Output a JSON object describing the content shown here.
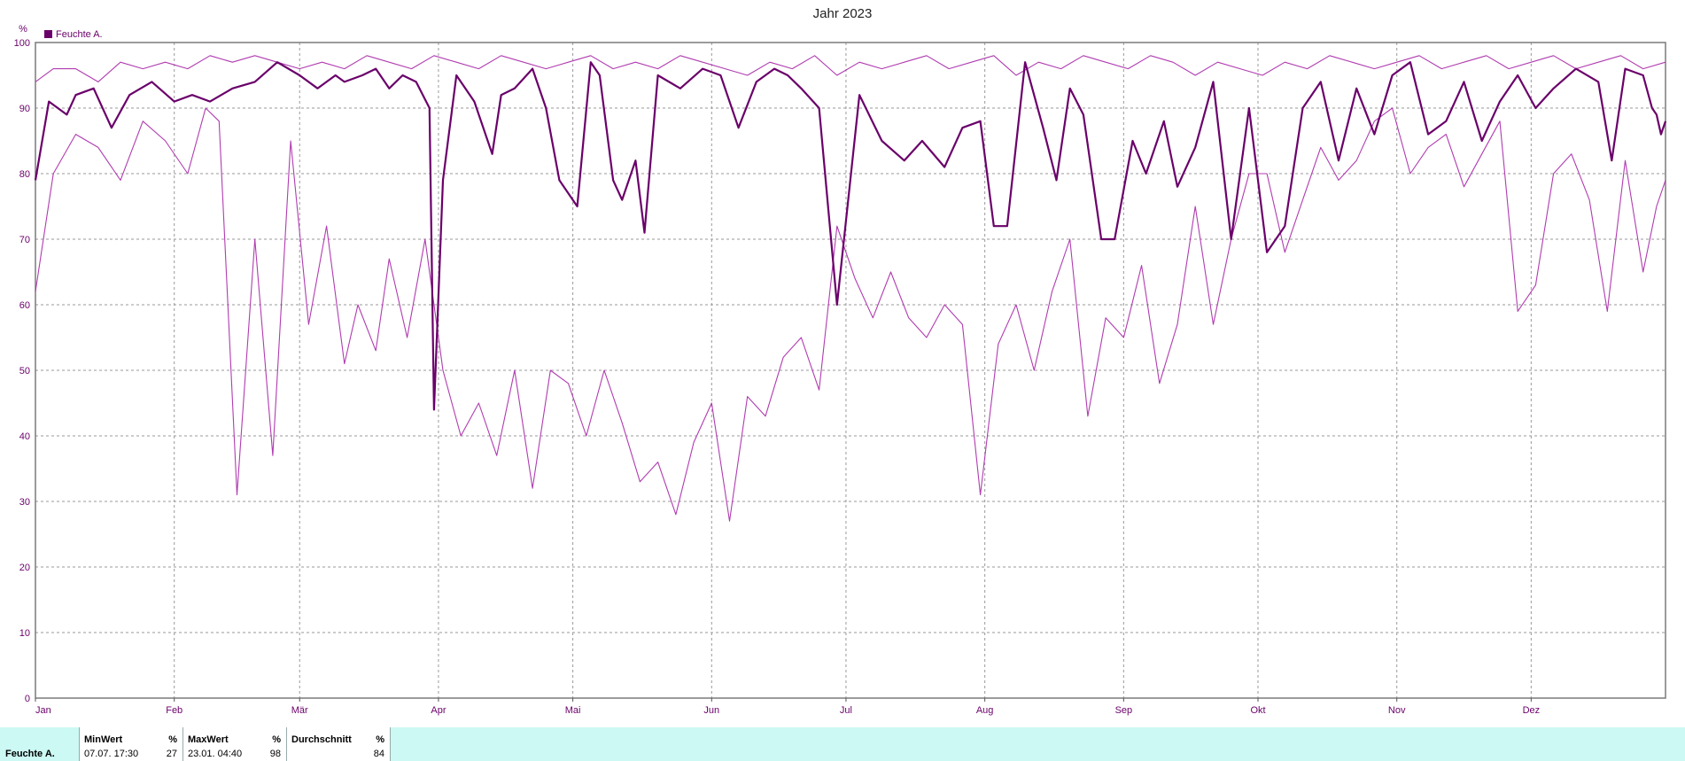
{
  "chart_data": {
    "type": "line",
    "title": "Jahr 2023",
    "y_unit_label": "%",
    "ylim": [
      0,
      100
    ],
    "y_ticks": [
      0,
      10,
      20,
      30,
      40,
      50,
      60,
      70,
      80,
      90,
      100
    ],
    "x_tick_labels": [
      "Jan",
      "Feb",
      "Mär",
      "Apr",
      "Mai",
      "Jun",
      "Jul",
      "Aug",
      "Sep",
      "Okt",
      "Nov",
      "Dez"
    ],
    "x_tick_days": [
      1,
      32,
      60,
      91,
      121,
      152,
      182,
      213,
      244,
      274,
      305,
      335
    ],
    "x_range_days": [
      1,
      365
    ],
    "grid": true,
    "legend": {
      "placement": "top-left",
      "entries": [
        {
          "name": "Feuchte A.",
          "color": "#6a006a"
        }
      ]
    },
    "colors": {
      "series": "#6a006a",
      "band": "#b03cb0"
    },
    "series": [
      {
        "role": "mean",
        "color": "#6a006a",
        "points": [
          [
            1,
            79
          ],
          [
            4,
            91
          ],
          [
            8,
            89
          ],
          [
            10,
            92
          ],
          [
            14,
            93
          ],
          [
            18,
            87
          ],
          [
            22,
            92
          ],
          [
            27,
            94
          ],
          [
            32,
            91
          ],
          [
            36,
            92
          ],
          [
            40,
            91
          ],
          [
            45,
            93
          ],
          [
            50,
            94
          ],
          [
            55,
            97
          ],
          [
            60,
            95
          ],
          [
            64,
            93
          ],
          [
            68,
            95
          ],
          [
            70,
            94
          ],
          [
            74,
            95
          ],
          [
            77,
            96
          ],
          [
            79,
            94
          ],
          [
            80,
            93
          ],
          [
            83,
            95
          ],
          [
            86,
            94
          ],
          [
            89,
            90
          ],
          [
            90,
            44
          ],
          [
            92,
            79
          ],
          [
            95,
            95
          ],
          [
            99,
            91
          ],
          [
            103,
            83
          ],
          [
            105,
            92
          ],
          [
            108,
            93
          ],
          [
            112,
            96
          ],
          [
            115,
            90
          ],
          [
            118,
            79
          ],
          [
            122,
            75
          ],
          [
            125,
            97
          ],
          [
            127,
            95
          ],
          [
            130,
            79
          ],
          [
            132,
            76
          ],
          [
            135,
            82
          ],
          [
            137,
            71
          ],
          [
            140,
            95
          ],
          [
            145,
            93
          ],
          [
            150,
            96
          ],
          [
            154,
            95
          ],
          [
            158,
            87
          ],
          [
            162,
            94
          ],
          [
            166,
            96
          ],
          [
            169,
            95
          ],
          [
            172,
            93
          ],
          [
            176,
            90
          ],
          [
            180,
            60
          ],
          [
            185,
            92
          ],
          [
            190,
            85
          ],
          [
            195,
            82
          ],
          [
            199,
            85
          ],
          [
            204,
            81
          ],
          [
            208,
            87
          ],
          [
            212,
            88
          ],
          [
            215,
            72
          ],
          [
            218,
            72
          ],
          [
            222,
            97
          ],
          [
            226,
            87
          ],
          [
            229,
            79
          ],
          [
            232,
            93
          ],
          [
            235,
            89
          ],
          [
            239,
            70
          ],
          [
            242,
            70
          ],
          [
            246,
            85
          ],
          [
            249,
            80
          ],
          [
            253,
            88
          ],
          [
            256,
            78
          ],
          [
            260,
            84
          ],
          [
            264,
            94
          ],
          [
            268,
            70
          ],
          [
            272,
            90
          ],
          [
            276,
            68
          ],
          [
            280,
            72
          ],
          [
            284,
            90
          ],
          [
            288,
            94
          ],
          [
            292,
            82
          ],
          [
            296,
            93
          ],
          [
            300,
            86
          ],
          [
            304,
            95
          ],
          [
            308,
            97
          ],
          [
            312,
            86
          ],
          [
            316,
            88
          ],
          [
            320,
            94
          ],
          [
            324,
            85
          ],
          [
            328,
            91
          ],
          [
            332,
            95
          ],
          [
            336,
            90
          ],
          [
            340,
            93
          ],
          [
            345,
            96
          ],
          [
            350,
            94
          ],
          [
            353,
            82
          ],
          [
            356,
            96
          ],
          [
            360,
            95
          ],
          [
            362,
            90
          ],
          [
            363,
            89
          ],
          [
            364,
            86
          ],
          [
            365,
            88
          ]
        ]
      },
      {
        "role": "max",
        "color": "#b03cb0",
        "points": [
          [
            1,
            94
          ],
          [
            5,
            96
          ],
          [
            10,
            96
          ],
          [
            15,
            94
          ],
          [
            20,
            97
          ],
          [
            25,
            96
          ],
          [
            30,
            97
          ],
          [
            35,
            96
          ],
          [
            40,
            98
          ],
          [
            45,
            97
          ],
          [
            50,
            98
          ],
          [
            55,
            97
          ],
          [
            60,
            96
          ],
          [
            65,
            97
          ],
          [
            70,
            96
          ],
          [
            75,
            98
          ],
          [
            80,
            97
          ],
          [
            85,
            96
          ],
          [
            90,
            98
          ],
          [
            95,
            97
          ],
          [
            100,
            96
          ],
          [
            105,
            98
          ],
          [
            110,
            97
          ],
          [
            115,
            96
          ],
          [
            120,
            97
          ],
          [
            125,
            98
          ],
          [
            130,
            96
          ],
          [
            135,
            97
          ],
          [
            140,
            96
          ],
          [
            145,
            98
          ],
          [
            150,
            97
          ],
          [
            155,
            96
          ],
          [
            160,
            95
          ],
          [
            165,
            97
          ],
          [
            170,
            96
          ],
          [
            175,
            98
          ],
          [
            180,
            95
          ],
          [
            185,
            97
          ],
          [
            190,
            96
          ],
          [
            195,
            97
          ],
          [
            200,
            98
          ],
          [
            205,
            96
          ],
          [
            210,
            97
          ],
          [
            215,
            98
          ],
          [
            220,
            95
          ],
          [
            225,
            97
          ],
          [
            230,
            96
          ],
          [
            235,
            98
          ],
          [
            240,
            97
          ],
          [
            245,
            96
          ],
          [
            250,
            98
          ],
          [
            255,
            97
          ],
          [
            260,
            95
          ],
          [
            265,
            97
          ],
          [
            270,
            96
          ],
          [
            275,
            95
          ],
          [
            280,
            97
          ],
          [
            285,
            96
          ],
          [
            290,
            98
          ],
          [
            295,
            97
          ],
          [
            300,
            96
          ],
          [
            305,
            97
          ],
          [
            310,
            98
          ],
          [
            315,
            96
          ],
          [
            320,
            97
          ],
          [
            325,
            98
          ],
          [
            330,
            96
          ],
          [
            335,
            97
          ],
          [
            340,
            98
          ],
          [
            345,
            96
          ],
          [
            350,
            97
          ],
          [
            355,
            98
          ],
          [
            360,
            96
          ],
          [
            365,
            97
          ]
        ]
      },
      {
        "role": "min",
        "color": "#b03cb0",
        "points": [
          [
            1,
            62
          ],
          [
            5,
            80
          ],
          [
            10,
            86
          ],
          [
            15,
            84
          ],
          [
            20,
            79
          ],
          [
            25,
            88
          ],
          [
            30,
            85
          ],
          [
            35,
            80
          ],
          [
            39,
            90
          ],
          [
            42,
            88
          ],
          [
            46,
            31
          ],
          [
            50,
            70
          ],
          [
            54,
            37
          ],
          [
            58,
            85
          ],
          [
            62,
            57
          ],
          [
            66,
            72
          ],
          [
            70,
            51
          ],
          [
            73,
            60
          ],
          [
            77,
            53
          ],
          [
            80,
            67
          ],
          [
            84,
            55
          ],
          [
            88,
            70
          ],
          [
            92,
            50
          ],
          [
            96,
            40
          ],
          [
            100,
            45
          ],
          [
            104,
            37
          ],
          [
            108,
            50
          ],
          [
            112,
            32
          ],
          [
            116,
            50
          ],
          [
            120,
            48
          ],
          [
            124,
            40
          ],
          [
            128,
            50
          ],
          [
            132,
            42
          ],
          [
            136,
            33
          ],
          [
            140,
            36
          ],
          [
            144,
            28
          ],
          [
            148,
            39
          ],
          [
            152,
            45
          ],
          [
            156,
            27
          ],
          [
            160,
            46
          ],
          [
            164,
            43
          ],
          [
            168,
            52
          ],
          [
            172,
            55
          ],
          [
            176,
            47
          ],
          [
            180,
            72
          ],
          [
            184,
            64
          ],
          [
            188,
            58
          ],
          [
            192,
            65
          ],
          [
            196,
            58
          ],
          [
            200,
            55
          ],
          [
            204,
            60
          ],
          [
            208,
            57
          ],
          [
            212,
            31
          ],
          [
            216,
            54
          ],
          [
            220,
            60
          ],
          [
            224,
            50
          ],
          [
            228,
            62
          ],
          [
            232,
            70
          ],
          [
            236,
            43
          ],
          [
            240,
            58
          ],
          [
            244,
            55
          ],
          [
            248,
            66
          ],
          [
            252,
            48
          ],
          [
            256,
            57
          ],
          [
            260,
            75
          ],
          [
            264,
            57
          ],
          [
            268,
            70
          ],
          [
            272,
            80
          ],
          [
            276,
            80
          ],
          [
            280,
            68
          ],
          [
            284,
            76
          ],
          [
            288,
            84
          ],
          [
            292,
            79
          ],
          [
            296,
            82
          ],
          [
            300,
            88
          ],
          [
            304,
            90
          ],
          [
            308,
            80
          ],
          [
            312,
            84
          ],
          [
            316,
            86
          ],
          [
            320,
            78
          ],
          [
            324,
            83
          ],
          [
            328,
            88
          ],
          [
            332,
            59
          ],
          [
            336,
            63
          ],
          [
            340,
            80
          ],
          [
            344,
            83
          ],
          [
            348,
            76
          ],
          [
            352,
            59
          ],
          [
            356,
            82
          ],
          [
            360,
            65
          ],
          [
            363,
            75
          ],
          [
            365,
            79
          ]
        ]
      }
    ]
  },
  "stats": {
    "series_name": "Feuchte A.",
    "min_header": "MinWert",
    "min_unit": "%",
    "min_date": "07.07.  17:30",
    "min_value": "27",
    "max_header": "MaxWert",
    "max_unit": "%",
    "max_date": "23.01.  04:40",
    "max_value": "98",
    "avg_header": "Durchschnitt",
    "avg_unit": "%",
    "avg_value": "84"
  }
}
